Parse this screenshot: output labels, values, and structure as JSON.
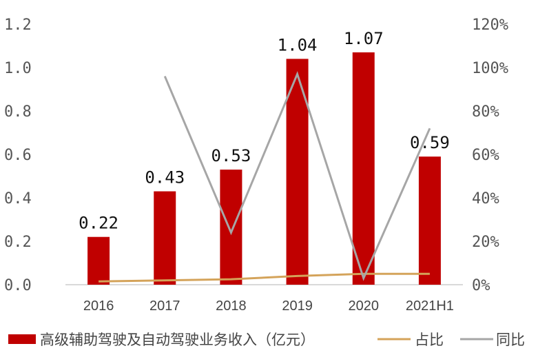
{
  "chart_data": {
    "type": "bar+line",
    "categories": [
      "2016",
      "2017",
      "2018",
      "2019",
      "2020",
      "2021H1"
    ],
    "series": [
      {
        "name": "高级辅助驾驶及自动驾驶业务收入（亿元）",
        "type": "bar",
        "axis": "left",
        "values": [
          0.22,
          0.43,
          0.53,
          1.04,
          1.07,
          0.59
        ],
        "labels": [
          "0.22",
          "0.43",
          "0.53",
          "1.04",
          "1.07",
          "0.59"
        ],
        "color": "#C00000"
      },
      {
        "name": "占比",
        "type": "line",
        "axis": "right",
        "values": [
          1.5,
          2,
          2.5,
          4,
          5,
          5
        ],
        "color": "#D4A35A"
      },
      {
        "name": "同比",
        "type": "line",
        "axis": "right",
        "values": [
          null,
          96,
          24,
          97,
          3,
          72
        ],
        "color": "#A6A6A6"
      }
    ],
    "left_axis": {
      "ylim": [
        0,
        1.2
      ],
      "ticks": [
        "0.0",
        "0.2",
        "0.4",
        "0.6",
        "0.8",
        "1.0",
        "1.2"
      ]
    },
    "right_axis": {
      "ylim": [
        0,
        120
      ],
      "ticks": [
        "0%",
        "20%",
        "40%",
        "60%",
        "80%",
        "100%",
        "120%"
      ]
    },
    "legend_placement": "bottom",
    "grid": false
  }
}
